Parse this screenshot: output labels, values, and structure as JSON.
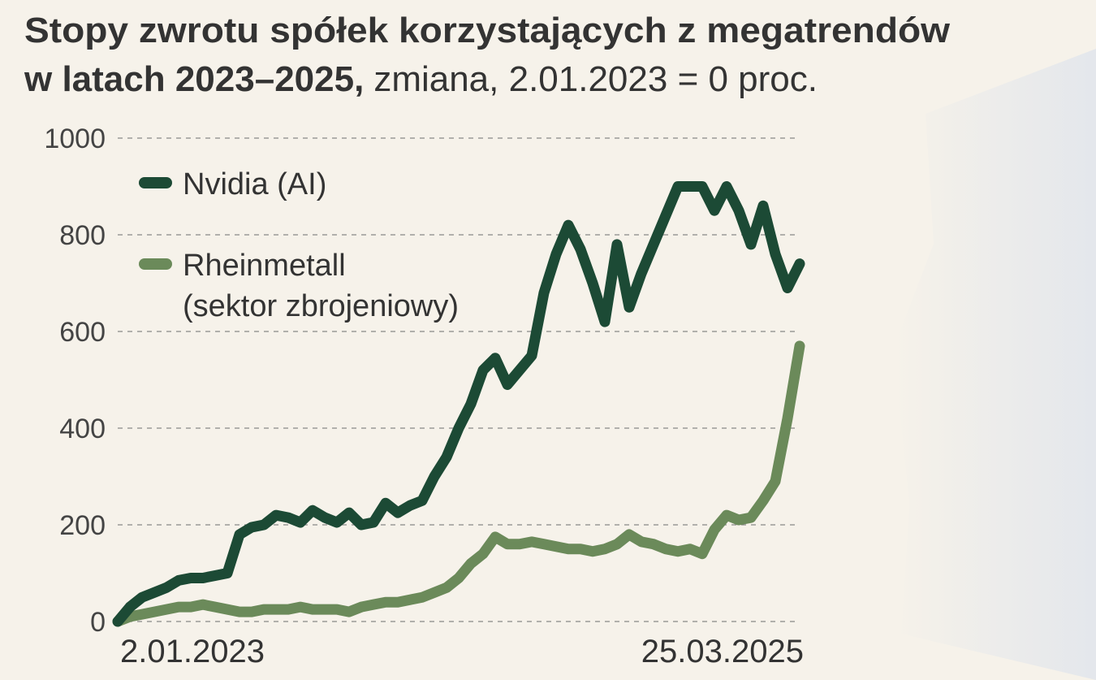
{
  "chart_data": {
    "type": "line",
    "title": [
      "Stopy zwrotu spółek korzystających z megatrendów",
      "w latach 2023–2025,"
    ],
    "subtitle": "zmiana, 2.01.2023 = 0 proc.",
    "categories": [
      "2.01.2023",
      null,
      null,
      null,
      null,
      null,
      null,
      null,
      null,
      null,
      null,
      null,
      null,
      null,
      null,
      null,
      null,
      null,
      null,
      null,
      null,
      null,
      null,
      null,
      null,
      null,
      null,
      null,
      null,
      null,
      null,
      null,
      null,
      null,
      null,
      null,
      null,
      null,
      null,
      null,
      null,
      null,
      null,
      null,
      null,
      null,
      null,
      null,
      null,
      null,
      null,
      null,
      null,
      null,
      null,
      null,
      "25.03.2025"
    ],
    "series": [
      {
        "name": "Nvidia (AI)",
        "color": "#1c4a35",
        "values": [
          0,
          30,
          50,
          60,
          70,
          85,
          90,
          90,
          95,
          100,
          180,
          195,
          200,
          220,
          215,
          205,
          230,
          215,
          205,
          225,
          200,
          205,
          245,
          225,
          240,
          250,
          300,
          340,
          400,
          450,
          520,
          545,
          490,
          520,
          550,
          680,
          760,
          820,
          770,
          700,
          620,
          780,
          650,
          720,
          780,
          840,
          900,
          900,
          900,
          850,
          900,
          850,
          780,
          860,
          760,
          690,
          740
        ]
      },
      {
        "name": "Rheinmetall (sektor zbrojeniowy)",
        "color": "#6b8a5a",
        "values": [
          0,
          10,
          15,
          20,
          25,
          30,
          30,
          35,
          30,
          25,
          20,
          20,
          25,
          25,
          25,
          30,
          25,
          25,
          25,
          20,
          30,
          35,
          40,
          40,
          45,
          50,
          60,
          70,
          90,
          120,
          140,
          175,
          160,
          160,
          165,
          160,
          155,
          150,
          150,
          145,
          150,
          160,
          180,
          165,
          160,
          150,
          145,
          150,
          140,
          190,
          220,
          210,
          215,
          250,
          290,
          420,
          570
        ]
      }
    ],
    "ylim": [
      0,
      1000
    ],
    "yticks": [
      0,
      200,
      400,
      600,
      800,
      1000
    ],
    "grid": true
  }
}
